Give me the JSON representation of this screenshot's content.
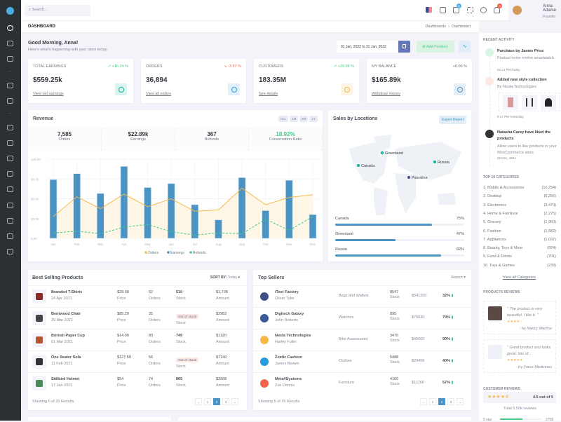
{
  "topbar": {
    "search_placeholder": "Search...",
    "cart_badge": "5",
    "notif_badge": "3",
    "user_name": "Anna Adame",
    "user_role": "Founder"
  },
  "page": {
    "title": "DASHBOARD",
    "breadcrumb": [
      "Dashboards",
      "Dashboard"
    ],
    "greeting": "Good Morning, Anna!",
    "subtitle": "Here's what's happening with your store today.",
    "date_range": "01 Jan, 2022 to 31 Jan, 2022",
    "add_product": "Add Product"
  },
  "kpis": [
    {
      "title": "Total Earnings",
      "change": "↗ +16.24 %",
      "value": "$559.25k",
      "link": "View net earnings",
      "color": "#0ab39c",
      "bg": "#daf4f0"
    },
    {
      "title": "Orders",
      "change": "↘ -3.57 %",
      "value": "36,894",
      "link": "View all orders",
      "color": "#299cdb",
      "bg": "#dff0fa"
    },
    {
      "title": "Customers",
      "change": "↗ +29.08 %",
      "value": "183.35M",
      "link": "See details",
      "color": "#f7b84b",
      "bg": "#fef4e4"
    },
    {
      "title": "My Balance",
      "change": "+0.00 %",
      "value": "$165.89k",
      "link": "Withdraw money",
      "color": "#4b93c3",
      "bg": "#e2eef7"
    }
  ],
  "revenue": {
    "title": "Revenue",
    "filters": [
      "ALL",
      "1M",
      "6M",
      "1Y"
    ],
    "stats": [
      {
        "value": "7,585",
        "label": "Orders"
      },
      {
        "value": "$22.89k",
        "label": "Earnings"
      },
      {
        "value": "367",
        "label": "Refunds"
      },
      {
        "value": "18.92%",
        "label": "Conversation Ratio"
      }
    ]
  },
  "chart_data": {
    "type": "bar",
    "categories": [
      "Jan",
      "Feb",
      "Mar",
      "Apr",
      "May",
      "Jun",
      "Jul",
      "Aug",
      "Sep",
      "Oct",
      "Nov",
      "Dec"
    ],
    "ylim": [
      0,
      120
    ],
    "yticks": [
      "0.00",
      "30.00",
      "60.00",
      "90.00",
      "120.00"
    ],
    "legend": "bottom",
    "grid": true,
    "series": [
      {
        "name": "Orders",
        "type": "area",
        "color": "#f7b84b",
        "values": [
          33,
          63,
          45,
          67,
          48,
          60,
          41,
          43,
          76,
          51,
          62,
          66
        ]
      },
      {
        "name": "Earnings",
        "type": "bar",
        "color": "#4b93c3",
        "values": [
          89,
          98,
          68,
          109,
          77,
          83,
          51,
          28,
          92,
          42,
          88,
          36
        ]
      },
      {
        "name": "Refunds",
        "type": "line-dashed",
        "color": "#45cb85",
        "values": [
          8,
          11,
          7,
          17,
          21,
          10,
          5,
          8,
          7,
          29,
          12,
          33
        ]
      }
    ]
  },
  "locations": {
    "title": "Sales by Locations",
    "export": "Export Report",
    "markers": [
      "Greenland",
      "Canada",
      "Russia",
      "Palestine"
    ],
    "bars": [
      {
        "name": "Canada",
        "pct": "75%",
        "value": 75
      },
      {
        "name": "Greenland",
        "pct": "47%",
        "value": 47
      },
      {
        "name": "Russia",
        "pct": "82%",
        "value": 82
      }
    ]
  },
  "best_selling": {
    "title": "Best Selling Products",
    "sort_label": "SORT BY:",
    "sort_value": "Today",
    "footer": "Showing 5 of 25 Results",
    "labels": {
      "price": "Price",
      "orders": "Orders",
      "stock": "Stock",
      "amount": "Amount"
    },
    "rows": [
      {
        "name": "Branded T-Shirts",
        "date": "24 Apr 2021",
        "price": "$29.00",
        "orders": "62",
        "stock": "510",
        "amount": "$1,798"
      },
      {
        "name": "Bentwood Chair",
        "date": "19 Mar 2021",
        "price": "$85.20",
        "orders": "35",
        "stock": "Out of stock",
        "amount": "$2982"
      },
      {
        "name": "Borosil Paper Cup",
        "date": "01 Mar 2021",
        "price": "$14.00",
        "orders": "80",
        "stock": "749",
        "amount": "$1120"
      },
      {
        "name": "One Seater Sofa",
        "date": "11 Feb 2021",
        "price": "$127.50",
        "orders": "56",
        "stock": "Out of stock",
        "amount": "$7140"
      },
      {
        "name": "Stillbird Helmet",
        "date": "17 Jan 2021",
        "price": "$54",
        "orders": "74",
        "stock": "805",
        "amount": "$3996"
      }
    ]
  },
  "top_sellers": {
    "title": "Top Sellers",
    "report": "Report",
    "footer": "Showing 5 of 25 Results",
    "stock_label": "Stock",
    "rows": [
      {
        "name": "iTest Factory",
        "owner": "Oliver Tyler",
        "category": "Bags and Wallets",
        "stock": "8547",
        "amount": "$541200",
        "pct": "32%",
        "color": "#405189"
      },
      {
        "name": "Digitech Galaxy",
        "owner": "John Roberts",
        "category": "Watches",
        "stock": "895",
        "amount": "$75030",
        "pct": "79%",
        "color": "#3b5998"
      },
      {
        "name": "Nesta Technologies",
        "owner": "Harley Fuller",
        "category": "Bike Accessories",
        "stock": "3470",
        "amount": "$45600",
        "pct": "90%",
        "color": "#f7b84b"
      },
      {
        "name": "Zoetic Fashion",
        "owner": "James Bowen",
        "category": "Clothes",
        "stock": "5488",
        "amount": "$29456",
        "pct": "40%",
        "color": "#299cdb"
      },
      {
        "name": "Meta4Systems",
        "owner": "Zoe Dennis",
        "category": "Furniture",
        "stock": "4100",
        "amount": "$11260",
        "pct": "57%",
        "color": "#f06548"
      }
    ]
  },
  "pagination": [
    "←",
    "1",
    "2",
    "3",
    "→"
  ],
  "right": {
    "activity_title": "RECENT ACTIVITY",
    "activities": [
      {
        "title": "Purchase by James Price",
        "desc": "Product noise evolve smartwatch",
        "time": "02:14 PM Today"
      },
      {
        "title": "Added new style collection",
        "desc": "By Nesta Technologies",
        "time": "9:47 PM Yesterday"
      },
      {
        "title": "Natasha Carey have liked the products",
        "desc": "Allow users to like products in your WooCommerce store.",
        "time": "25 Dec, 2021"
      }
    ],
    "categories_title": "TOP 10 CATEGORIES",
    "categories": [
      {
        "name": "1. Mobile & Accessories",
        "count": "(10,294)"
      },
      {
        "name": "2. Desktop",
        "count": "(6,256)"
      },
      {
        "name": "3. Electronics",
        "count": "(3,479)"
      },
      {
        "name": "4. Home & Furniture",
        "count": "(2,275)"
      },
      {
        "name": "5. Grocery",
        "count": "(1,950)"
      },
      {
        "name": "6. Fashion",
        "count": "(1,582)"
      },
      {
        "name": "7. Appliances",
        "count": "(1,037)"
      },
      {
        "name": "8. Beauty, Toys & More",
        "count": "(924)"
      },
      {
        "name": "9. Food & Drinks",
        "count": "(701)"
      },
      {
        "name": "10. Toys & Games",
        "count": "(239)"
      }
    ],
    "view_all": "View all Categories",
    "reviews_title": "PRODUCTS REVIEWS",
    "reviews": [
      {
        "text": "\" The product is very beautiful. I like it. \"",
        "stars": "★★★★☆",
        "by": "- by",
        "author": "Nancy Martino",
        "rating": 4
      },
      {
        "text": "\" Great product and looks great, lots of...",
        "stars": "★★★★★",
        "by": "- by",
        "author": "Force Medicines",
        "rating": 5
      }
    ],
    "customer_title": "CUSTOMER REVIEWS",
    "customer_stars": "★★★★⯪",
    "customer_score": "4.5 out of 5",
    "customer_total": "Total 5.50k reviews",
    "star_row": {
      "label": "5 star",
      "count": "2758"
    }
  }
}
